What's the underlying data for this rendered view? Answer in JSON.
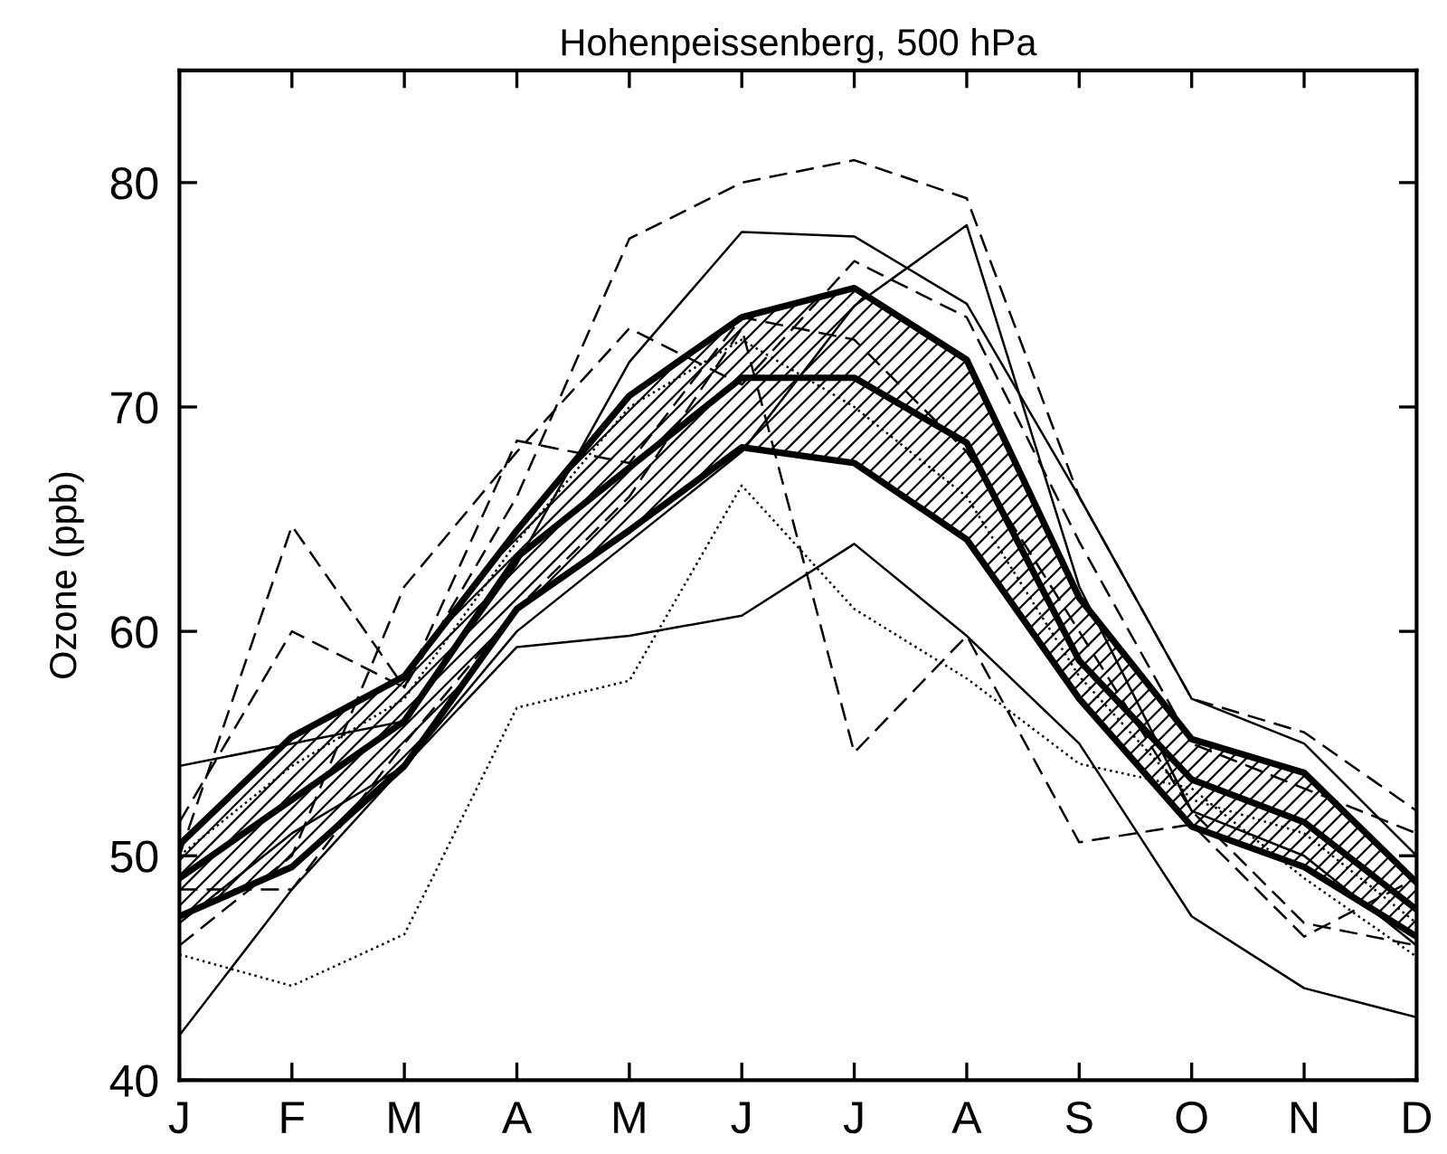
{
  "chart_data": {
    "type": "line",
    "title": "Hohenpeissenberg, 500 hPa",
    "ylabel": "Ozone (ppb)",
    "categories": [
      "J",
      "F",
      "M",
      "A",
      "M",
      "J",
      "J",
      "A",
      "S",
      "O",
      "N",
      "D"
    ],
    "ylim": [
      40,
      85
    ],
    "yticks": [
      40,
      50,
      60,
      70,
      80
    ],
    "grid": false,
    "legend": false,
    "series": [
      {
        "color": "#000000",
        "line_style": "solid",
        "values": [
          42,
          48.5,
          54,
          59.3,
          59.8,
          60.7,
          63.9,
          59.8,
          55,
          47.3,
          44.1,
          42.8
        ]
      },
      {
        "color": "#000000",
        "line_style": "dotted",
        "values": [
          45.6,
          44.2,
          46.5,
          56.6,
          57.8,
          66.5,
          61,
          57.9,
          54.1,
          53,
          49,
          45.5
        ]
      },
      {
        "color": "#000000",
        "line_style": "dashed",
        "values": [
          50,
          64.7,
          57.5,
          68.5,
          67.5,
          74,
          73,
          68,
          60,
          52,
          47,
          46
        ]
      },
      {
        "color": "#000000",
        "line_style": "dashed",
        "values": [
          48.5,
          48.5,
          55,
          61,
          66,
          73.5,
          54.6,
          59.8,
          50.6,
          51.4,
          46.4,
          49
        ]
      },
      {
        "color": "#000000",
        "line_style": "dashed",
        "values": [
          51.5,
          60,
          57.5,
          66,
          77.5,
          80,
          81,
          79.3,
          66,
          57,
          55.5,
          52
        ]
      },
      {
        "color": "#000000",
        "line_style": "solid",
        "values": [
          54,
          55,
          56,
          63,
          72,
          77.8,
          77.6,
          74.6,
          66,
          57,
          55,
          50
        ]
      },
      {
        "color": "#000000",
        "line_style": "solid",
        "values": [
          47,
          51,
          54,
          60,
          64,
          68,
          74.5,
          78.1,
          62,
          52,
          50,
          46
        ]
      },
      {
        "color": "#000000",
        "line_style": "dashed",
        "values": [
          46,
          50,
          62,
          68,
          73.5,
          71,
          76.5,
          74,
          64,
          55,
          53,
          51
        ]
      },
      {
        "color": "#000000",
        "line_style": "dotted",
        "values": [
          50,
          54,
          57,
          64,
          70,
          73,
          70,
          66,
          58,
          52.5,
          51,
          47
        ]
      },
      {
        "color": "#000000",
        "line_style": "solid",
        "values": [
          47.3,
          49.5,
          54,
          61,
          64.5,
          68.2,
          67.5,
          64.1,
          57,
          51.3,
          49.5,
          46.4
        ]
      },
      {
        "color": "#000000",
        "line_style": "solid",
        "values": [
          50.5,
          55.3,
          58,
          64.5,
          70.5,
          74,
          75.3,
          72.1,
          61.5,
          55.2,
          53.7,
          48.8
        ]
      },
      {
        "color": "#000000",
        "line_style": "solid",
        "values": [
          49,
          52.5,
          56,
          63.3,
          67.3,
          71.3,
          71.3,
          68.4,
          58.7,
          53.4,
          51.5,
          47.6
        ],
        "lower": [
          47.3,
          49.5,
          54,
          61,
          64.5,
          68.2,
          67.5,
          64.1,
          57,
          51.3,
          49.5,
          46.4
        ],
        "upper": [
          50.5,
          55.3,
          58,
          64.5,
          70.5,
          74,
          75.3,
          72.1,
          61.5,
          55.2,
          53.7,
          48.8
        ]
      }
    ]
  }
}
